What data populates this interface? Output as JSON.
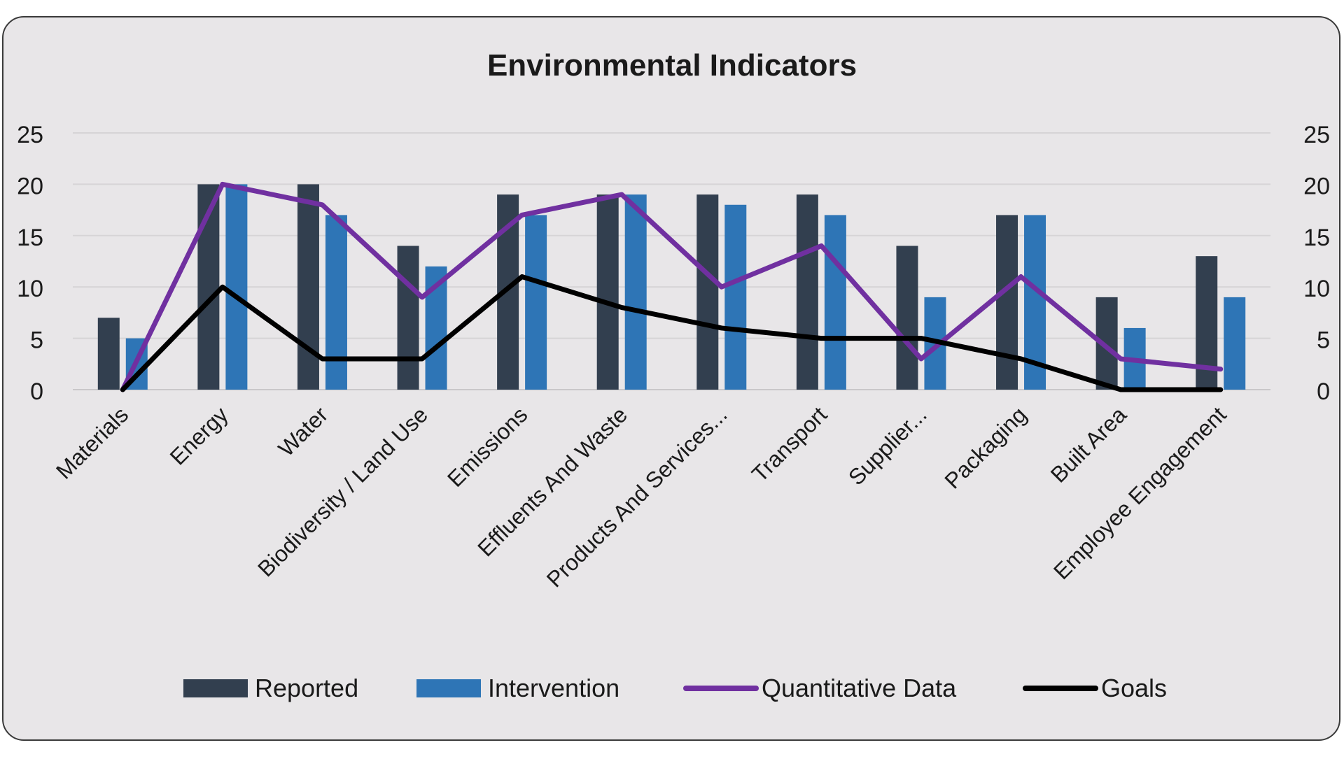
{
  "chart_data": {
    "type": "bar",
    "title": "Environmental Indicators",
    "categories": [
      "Materials",
      "Energy",
      "Water",
      "Biodiversity / Land Use",
      "Emissions",
      "Effluents And Waste",
      "Products And Services...",
      "Transport",
      "Supplier...",
      "Packaging",
      "Built Area",
      "Employee Engagement"
    ],
    "series": [
      {
        "name": "Reported",
        "kind": "bar",
        "color": "#323F4F",
        "values": [
          7,
          20,
          20,
          14,
          19,
          19,
          19,
          19,
          14,
          17,
          9,
          13
        ]
      },
      {
        "name": "Intervention",
        "kind": "bar",
        "color": "#2E75B6",
        "values": [
          5,
          20,
          17,
          12,
          17,
          19,
          18,
          17,
          9,
          17,
          6,
          9
        ]
      },
      {
        "name": "Quantitative Data",
        "kind": "line",
        "color": "#7030A0",
        "values": [
          0,
          20,
          18,
          9,
          17,
          19,
          10,
          14,
          3,
          11,
          3,
          2
        ]
      },
      {
        "name": "Goals",
        "kind": "line",
        "color": "#000000",
        "values": [
          0,
          10,
          3,
          3,
          11,
          8,
          6,
          5,
          5,
          3,
          0,
          0
        ]
      }
    ],
    "ylim": [
      0,
      25
    ],
    "yticks": [
      0,
      5,
      10,
      15,
      20,
      25
    ],
    "secondary_yticks": [
      0,
      5,
      10,
      15,
      20,
      25
    ],
    "grid": true,
    "legend_position": "bottom",
    "background": "#E8E6E8"
  }
}
